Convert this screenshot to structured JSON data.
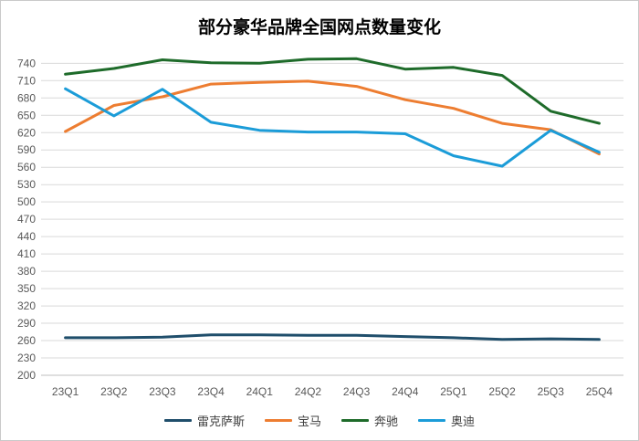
{
  "chart_data": {
    "type": "line",
    "title": "部分豪华品牌全国网点数量变化",
    "xlabel": "",
    "ylabel": "",
    "categories": [
      "23Q1",
      "23Q2",
      "23Q3",
      "23Q4",
      "24Q1",
      "24Q2",
      "24Q3",
      "24Q4",
      "25Q1",
      "25Q2",
      "25Q3",
      "25Q4"
    ],
    "yticks": [
      200,
      230,
      260,
      290,
      320,
      350,
      380,
      410,
      440,
      470,
      500,
      530,
      560,
      590,
      620,
      650,
      680,
      710,
      740
    ],
    "ylim": [
      200,
      750
    ],
    "grid": "horizontal",
    "legend_position": "bottom",
    "series": [
      {
        "name": "雷克萨斯",
        "color": "#1f4e6b",
        "values": [
          265,
          265,
          266,
          270,
          270,
          269,
          269,
          267,
          265,
          262,
          263,
          262
        ]
      },
      {
        "name": "宝马",
        "color": "#ed7d31",
        "values": [
          622,
          667,
          682,
          704,
          707,
          709,
          700,
          677,
          662,
          636,
          625,
          583
        ]
      },
      {
        "name": "奔驰",
        "color": "#1e6b2a",
        "values": [
          721,
          731,
          746,
          741,
          740,
          747,
          748,
          730,
          733,
          719,
          657,
          636
        ]
      },
      {
        "name": "奥迪",
        "color": "#1b9cd8",
        "values": [
          696,
          649,
          695,
          638,
          624,
          621,
          621,
          618,
          580,
          562,
          624,
          586
        ]
      }
    ]
  }
}
